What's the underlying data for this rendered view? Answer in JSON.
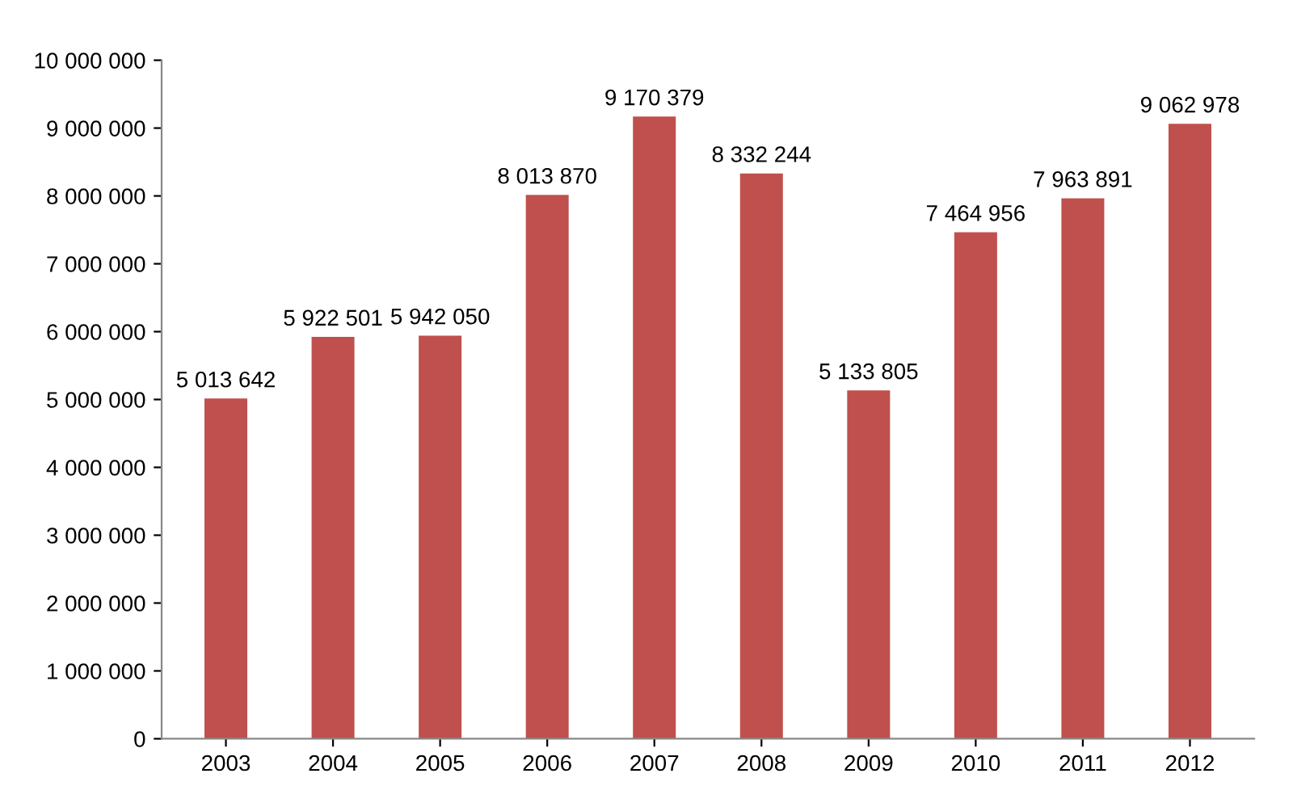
{
  "chart_data": {
    "type": "bar",
    "categories": [
      "2003",
      "2004",
      "2005",
      "2006",
      "2007",
      "2008",
      "2009",
      "2010",
      "2011",
      "2012"
    ],
    "values": [
      5013642,
      5922501,
      5942050,
      8013870,
      9170379,
      8332244,
      5133805,
      7464956,
      7963891,
      9062978
    ],
    "value_labels": [
      "5 013 642",
      "5 922 501",
      "5 942 050",
      "8 013 870",
      "9 170 379",
      "8 332 244",
      "5 133 805",
      "7 464 956",
      "7 963 891",
      "9 062 978"
    ],
    "color": "#c0504d",
    "ylim": [
      0,
      10000000
    ],
    "yticks": [
      {
        "value": 0,
        "label": "0"
      },
      {
        "value": 1000000,
        "label": "1 000 000"
      },
      {
        "value": 2000000,
        "label": "2 000 000"
      },
      {
        "value": 3000000,
        "label": "3 000 000"
      },
      {
        "value": 4000000,
        "label": "4 000 000"
      },
      {
        "value": 5000000,
        "label": "5 000 000"
      },
      {
        "value": 6000000,
        "label": "6 000 000"
      },
      {
        "value": 7000000,
        "label": "7 000 000"
      },
      {
        "value": 8000000,
        "label": "8 000 000"
      },
      {
        "value": 9000000,
        "label": "9 000 000"
      },
      {
        "value": 10000000,
        "label": "10 000 000"
      }
    ],
    "grid": false,
    "legend": false
  }
}
